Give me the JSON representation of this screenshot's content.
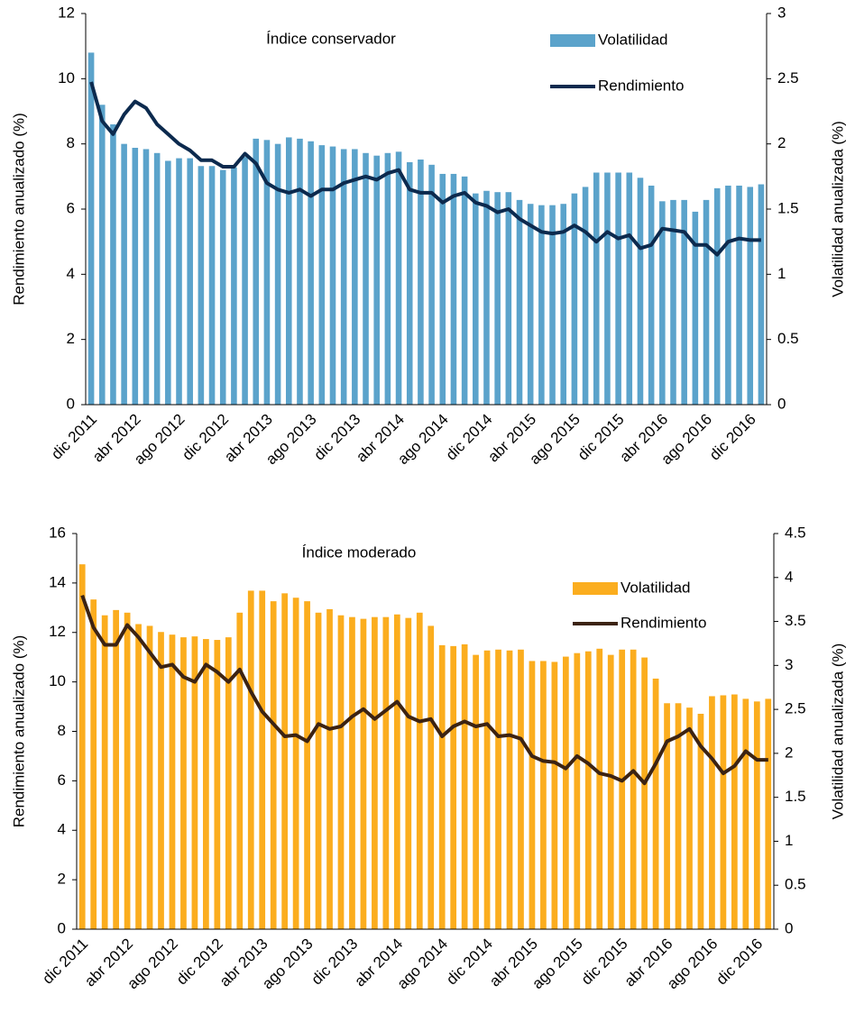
{
  "chart_data": [
    {
      "type": "combo",
      "title": "Índice conservador",
      "y_label": "Rendimiento anualizado (%)",
      "y2_label": "Volatilidad anualizada (%)",
      "categories": [
        "dic 2011",
        null,
        null,
        null,
        "abr 2012",
        null,
        null,
        null,
        "ago 2012",
        null,
        null,
        null,
        "dic 2012",
        null,
        null,
        null,
        "abr 2013",
        null,
        null,
        null,
        "ago 2013",
        null,
        null,
        null,
        "dic 2013",
        null,
        null,
        null,
        "abr 2014",
        null,
        null,
        null,
        "ago 2014",
        null,
        null,
        null,
        "dic 2014",
        null,
        null,
        null,
        "abr 2015",
        null,
        null,
        null,
        "ago 2015",
        null,
        null,
        null,
        "dic 2015",
        null,
        null,
        null,
        "abr 2016",
        null,
        null,
        null,
        "ago 2016",
        null,
        null,
        null,
        "dic 2016",
        null
      ],
      "ylim": [
        0,
        12
      ],
      "yticks": [
        0,
        2,
        4,
        6,
        8,
        10,
        12
      ],
      "y2lim": [
        0,
        3
      ],
      "y2ticks": [
        0,
        0.5,
        1,
        1.5,
        2,
        2.5,
        3
      ],
      "legend": "upper right",
      "grid": false,
      "series": [
        {
          "name": "Volatilidad",
          "type": "bar",
          "axis": "y2",
          "color": "#5ba3cb",
          "values": [
            2.7,
            2.3,
            2.15,
            2.0,
            1.97,
            1.96,
            1.93,
            1.87,
            1.89,
            1.89,
            1.83,
            1.83,
            1.8,
            1.82,
            1.9,
            2.04,
            2.03,
            2.0,
            2.05,
            2.04,
            2.02,
            1.99,
            1.98,
            1.96,
            1.96,
            1.93,
            1.91,
            1.93,
            1.94,
            1.86,
            1.88,
            1.84,
            1.77,
            1.77,
            1.75,
            1.62,
            1.64,
            1.63,
            1.63,
            1.57,
            1.54,
            1.53,
            1.53,
            1.54,
            1.62,
            1.67,
            1.78,
            1.78,
            1.78,
            1.78,
            1.74,
            1.68,
            1.56,
            1.57,
            1.57,
            1.48,
            1.57,
            1.66,
            1.68,
            1.68,
            1.67,
            1.69
          ]
        },
        {
          "name": "Rendimiento",
          "type": "line",
          "color": "#0c2a4e",
          "values": [
            9.9,
            8.7,
            8.3,
            8.9,
            9.3,
            9.1,
            8.6,
            8.3,
            8.0,
            7.8,
            7.5,
            7.5,
            7.3,
            7.3,
            7.7,
            7.4,
            6.8,
            6.6,
            6.5,
            6.6,
            6.4,
            6.6,
            6.6,
            6.8,
            6.9,
            7.0,
            6.9,
            7.1,
            7.2,
            6.6,
            6.5,
            6.5,
            6.2,
            6.4,
            6.5,
            6.2,
            6.1,
            5.9,
            6.0,
            5.7,
            5.5,
            5.3,
            5.25,
            5.3,
            5.5,
            5.3,
            5.0,
            5.3,
            5.1,
            5.2,
            4.8,
            4.9,
            5.4,
            5.35,
            5.3,
            4.9,
            4.9,
            4.6,
            5.0,
            5.1,
            5.05,
            5.05
          ]
        }
      ]
    },
    {
      "type": "combo",
      "title": "Índice moderado",
      "y_label": "Rendimiento anualizado (%)",
      "y2_label": "Volatilidad anualizada (%)",
      "categories": [
        "dic 2011",
        null,
        null,
        null,
        "abr 2012",
        null,
        null,
        null,
        "ago 2012",
        null,
        null,
        null,
        "dic 2012",
        null,
        null,
        null,
        "abr 2013",
        null,
        null,
        null,
        "ago 2013",
        null,
        null,
        null,
        "dic 2013",
        null,
        null,
        null,
        "abr 2014",
        null,
        null,
        null,
        "ago 2014",
        null,
        null,
        null,
        "dic 2014",
        null,
        null,
        null,
        "abr 2015",
        null,
        null,
        null,
        "ago 2015",
        null,
        null,
        null,
        "dic 2015",
        null,
        null,
        null,
        "abr 2016",
        null,
        null,
        null,
        "ago 2016",
        null,
        null,
        null,
        "dic 2016",
        null
      ],
      "ylim": [
        0,
        16
      ],
      "yticks": [
        0,
        2,
        4,
        6,
        8,
        10,
        12,
        14,
        16
      ],
      "y2lim": [
        0,
        4.5
      ],
      "y2ticks": [
        0,
        0.5,
        1,
        1.5,
        2,
        2.5,
        3,
        3.5,
        4,
        4.5
      ],
      "legend": "upper right",
      "grid": false,
      "series": [
        {
          "name": "Volatilidad",
          "type": "bar",
          "axis": "y2",
          "color": "#fbad1e",
          "values": [
            4.15,
            3.75,
            3.57,
            3.63,
            3.6,
            3.47,
            3.45,
            3.38,
            3.35,
            3.32,
            3.33,
            3.3,
            3.29,
            3.32,
            3.6,
            3.85,
            3.85,
            3.73,
            3.82,
            3.77,
            3.73,
            3.6,
            3.64,
            3.57,
            3.55,
            3.53,
            3.55,
            3.55,
            3.58,
            3.54,
            3.6,
            3.45,
            3.23,
            3.22,
            3.24,
            3.12,
            3.17,
            3.18,
            3.17,
            3.18,
            3.05,
            3.05,
            3.04,
            3.1,
            3.14,
            3.16,
            3.19,
            3.12,
            3.18,
            3.18,
            3.09,
            2.85,
            2.57,
            2.57,
            2.52,
            2.45,
            2.65,
            2.66,
            2.67,
            2.62,
            2.59,
            2.62
          ]
        },
        {
          "name": "Rendimiento",
          "type": "line",
          "color": "#3c2313",
          "values": [
            13.5,
            12.2,
            11.5,
            11.5,
            12.3,
            11.8,
            11.2,
            10.6,
            10.7,
            10.2,
            10.0,
            10.7,
            10.4,
            10.0,
            10.5,
            9.6,
            8.8,
            8.3,
            7.8,
            7.85,
            7.6,
            8.3,
            8.1,
            8.2,
            8.6,
            8.9,
            8.5,
            8.85,
            9.2,
            8.6,
            8.4,
            8.5,
            7.8,
            8.2,
            8.4,
            8.2,
            8.3,
            7.8,
            7.85,
            7.7,
            7.0,
            6.8,
            6.75,
            6.5,
            7.0,
            6.7,
            6.3,
            6.2,
            6.0,
            6.4,
            5.9,
            6.7,
            7.6,
            7.8,
            8.1,
            7.4,
            6.9,
            6.3,
            6.6,
            7.2,
            6.85,
            6.85
          ]
        }
      ]
    }
  ]
}
